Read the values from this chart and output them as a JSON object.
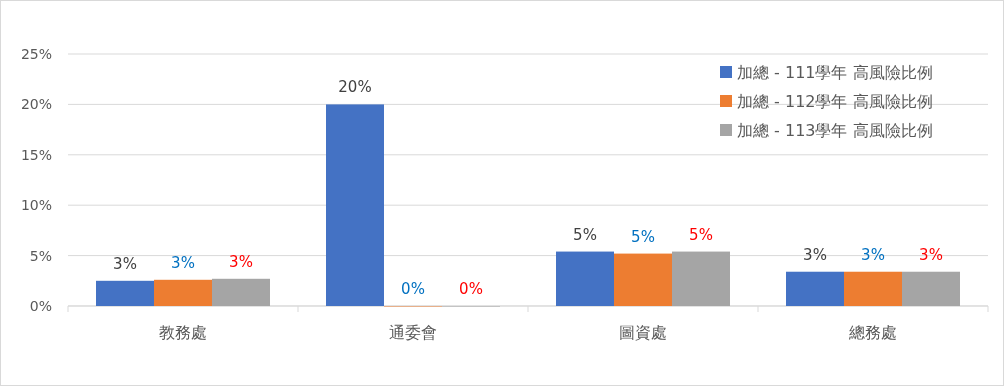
{
  "chart_data": {
    "type": "bar",
    "categories": [
      "教務處",
      "通委會",
      "圖資處",
      "總務處"
    ],
    "series": [
      {
        "name": "加總 - 111學年 高風險比例",
        "color": "#4472c4",
        "values": [
          2.5,
          20,
          5.4,
          3.4
        ],
        "value_labels": [
          "3%",
          "20%",
          "5%",
          "3%"
        ]
      },
      {
        "name": "加總 - 112學年 高風險比例",
        "color": "#ed7d31",
        "values": [
          2.6,
          0,
          5.2,
          3.4
        ],
        "value_labels": [
          "3%",
          "0%",
          "5%",
          "3%"
        ]
      },
      {
        "name": "加總 - 113學年 高風險比例",
        "color": "#a5a5a5",
        "values": [
          2.7,
          0,
          5.4,
          3.4
        ],
        "value_labels": [
          "3%",
          "0%",
          "5%",
          "3%"
        ]
      }
    ],
    "ylim": [
      0,
      25
    ],
    "yticks": [
      {
        "value": 0,
        "label": "0%"
      },
      {
        "value": 5,
        "label": "5%"
      },
      {
        "value": 10,
        "label": "10%"
      },
      {
        "value": 15,
        "label": "15%"
      },
      {
        "value": 20,
        "label": "20%"
      },
      {
        "value": 25,
        "label": "25%"
      }
    ],
    "grid": "y",
    "legend": "top right"
  }
}
